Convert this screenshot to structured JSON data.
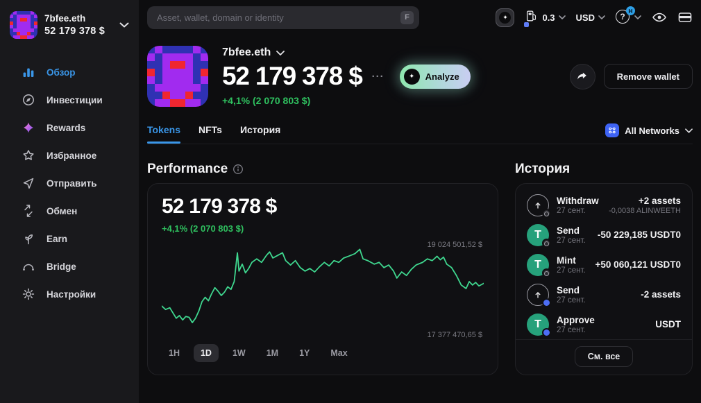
{
  "sidebar": {
    "wallet": {
      "name": "7bfee.eth",
      "balance": "52 179 378 $"
    },
    "items": [
      {
        "label": "Обзор",
        "icon": "bar-chart",
        "active": true
      },
      {
        "label": "Инвестиции",
        "icon": "compass"
      },
      {
        "label": "Rewards",
        "icon": "sparkle"
      },
      {
        "label": "Избранное",
        "icon": "star"
      },
      {
        "label": "Отправить",
        "icon": "send"
      },
      {
        "label": "Обмен",
        "icon": "swap"
      },
      {
        "label": "Earn",
        "icon": "sprout"
      },
      {
        "label": "Bridge",
        "icon": "bridge"
      },
      {
        "label": "Настройки",
        "icon": "gear"
      }
    ]
  },
  "header": {
    "search": {
      "placeholder": "Asset, wallet, domain or identity",
      "shortcut": "F"
    },
    "gas": {
      "value": "0.3"
    },
    "currency": "USD",
    "help_glyph": "?",
    "help_badge": "H"
  },
  "wallet_header": {
    "name": "7bfee.eth",
    "balance": "52 179 378 $",
    "change": "+4,1% (2 070 803 $)",
    "more": "···",
    "analyze": "Analyze",
    "remove": "Remove wallet"
  },
  "tabs": {
    "items": [
      {
        "label": "Tokens",
        "active": true
      },
      {
        "label": "NFTs"
      },
      {
        "label": "История"
      }
    ],
    "network": "All Networks"
  },
  "performance": {
    "title": "Performance",
    "balance": "52 179 378 $",
    "change": "+4,1% (2 070 803 $)",
    "ranges": [
      "1H",
      "1D",
      "1W",
      "1M",
      "1Y",
      "Max"
    ],
    "active_range": "1D"
  },
  "history": {
    "title": "История",
    "see_all": "См. все",
    "items": [
      {
        "type": "Withdraw",
        "date": "27 сент.",
        "primary": "+2 assets",
        "secondary": "-0,0038 ALINWEETH"
      },
      {
        "type": "Send",
        "date": "27 сент.",
        "primary": "-50 229,185 USDT0",
        "secondary": ""
      },
      {
        "type": "Mint",
        "date": "27 сент.",
        "primary": "+50 060,121 USDT0",
        "secondary": ""
      },
      {
        "type": "Send",
        "date": "27 сент.",
        "primary": "-2 assets",
        "secondary": ""
      },
      {
        "type": "Approve",
        "date": "27 сент.",
        "primary": "USDT",
        "secondary": ""
      }
    ]
  },
  "icons": {
    "tether_glyph": "T",
    "analyze_glyph": "✦",
    "app_badge_glyph": "✦"
  },
  "colors": {
    "accent_blue": "#3a96e8",
    "green_text": "#2fc05f",
    "chart_line": "#3fd78f",
    "tether_green": "#26a17b",
    "network_blue": "#3e63f4"
  },
  "avatar": {
    "palette": {
      "B": "#2f31b3",
      "P": "#a12bef",
      "R": "#f02630"
    },
    "grid": [
      "BPBBBBPB",
      "PBPPPPBP",
      "BBPRRPBB",
      "RBPPPPBR",
      "PBPPPPBP",
      "BPPPPPPB",
      "BBRPPRBB",
      "BPPRRPPB"
    ]
  },
  "chart_data": {
    "type": "line",
    "title": "Performance",
    "period": "1D",
    "currency": "USD",
    "high_label": "19 024 501,52 $",
    "low_label": "17 377 470,65 $",
    "high_value": 19024501.52,
    "low_value": 17377470.65,
    "line_color": "#3fd78f",
    "legend": [],
    "grid": false,
    "points": [
      [
        0.0,
        0.3
      ],
      [
        0.012,
        0.26
      ],
      [
        0.025,
        0.28
      ],
      [
        0.035,
        0.22
      ],
      [
        0.045,
        0.16
      ],
      [
        0.055,
        0.19
      ],
      [
        0.065,
        0.14
      ],
      [
        0.075,
        0.18
      ],
      [
        0.085,
        0.17
      ],
      [
        0.095,
        0.11
      ],
      [
        0.105,
        0.16
      ],
      [
        0.115,
        0.24
      ],
      [
        0.125,
        0.35
      ],
      [
        0.135,
        0.4
      ],
      [
        0.145,
        0.36
      ],
      [
        0.155,
        0.44
      ],
      [
        0.165,
        0.51
      ],
      [
        0.175,
        0.47
      ],
      [
        0.185,
        0.42
      ],
      [
        0.195,
        0.46
      ],
      [
        0.205,
        0.52
      ],
      [
        0.215,
        0.49
      ],
      [
        0.225,
        0.58
      ],
      [
        0.235,
        0.91
      ],
      [
        0.24,
        0.7
      ],
      [
        0.25,
        0.78
      ],
      [
        0.26,
        0.68
      ],
      [
        0.27,
        0.73
      ],
      [
        0.28,
        0.8
      ],
      [
        0.295,
        0.84
      ],
      [
        0.31,
        0.8
      ],
      [
        0.325,
        0.88
      ],
      [
        0.335,
        0.92
      ],
      [
        0.345,
        0.85
      ],
      [
        0.36,
        0.88
      ],
      [
        0.375,
        0.91
      ],
      [
        0.385,
        0.82
      ],
      [
        0.4,
        0.77
      ],
      [
        0.415,
        0.82
      ],
      [
        0.43,
        0.74
      ],
      [
        0.445,
        0.7
      ],
      [
        0.46,
        0.73
      ],
      [
        0.475,
        0.69
      ],
      [
        0.49,
        0.75
      ],
      [
        0.505,
        0.8
      ],
      [
        0.52,
        0.76
      ],
      [
        0.535,
        0.82
      ],
      [
        0.55,
        0.8
      ],
      [
        0.565,
        0.85
      ],
      [
        0.58,
        0.87
      ],
      [
        0.6,
        0.9
      ],
      [
        0.615,
        0.95
      ],
      [
        0.625,
        0.84
      ],
      [
        0.64,
        0.82
      ],
      [
        0.66,
        0.78
      ],
      [
        0.675,
        0.8
      ],
      [
        0.69,
        0.74
      ],
      [
        0.705,
        0.77
      ],
      [
        0.72,
        0.7
      ],
      [
        0.73,
        0.62
      ],
      [
        0.745,
        0.69
      ],
      [
        0.76,
        0.65
      ],
      [
        0.775,
        0.72
      ],
      [
        0.79,
        0.77
      ],
      [
        0.81,
        0.8
      ],
      [
        0.825,
        0.84
      ],
      [
        0.84,
        0.82
      ],
      [
        0.855,
        0.87
      ],
      [
        0.865,
        0.83
      ],
      [
        0.875,
        0.86
      ],
      [
        0.885,
        0.78
      ],
      [
        0.9,
        0.74
      ],
      [
        0.915,
        0.65
      ],
      [
        0.93,
        0.54
      ],
      [
        0.945,
        0.5
      ],
      [
        0.955,
        0.58
      ],
      [
        0.965,
        0.54
      ],
      [
        0.975,
        0.57
      ],
      [
        0.985,
        0.53
      ],
      [
        1.0,
        0.56
      ]
    ]
  }
}
